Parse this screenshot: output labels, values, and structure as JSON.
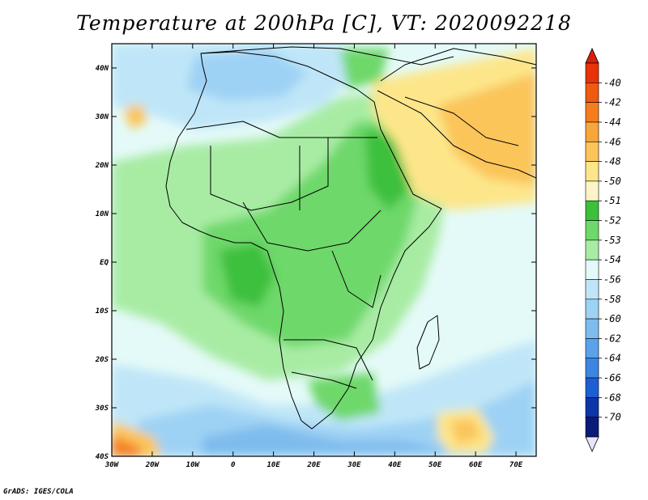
{
  "title": "Temperature at 200hPa [C], VT: 2020092218",
  "credit": "GrADS: IGES/COLA",
  "chart_data": {
    "type": "heatmap",
    "variable": "Temperature at 200hPa",
    "unit": "C",
    "valid_time": "2020092218",
    "xlim": [
      -30,
      75
    ],
    "ylim": [
      -40,
      45
    ],
    "x_ticks": [
      {
        "value": -30,
        "label": "30W"
      },
      {
        "value": -20,
        "label": "20W"
      },
      {
        "value": -10,
        "label": "10W"
      },
      {
        "value": 0,
        "label": "0"
      },
      {
        "value": 10,
        "label": "10E"
      },
      {
        "value": 20,
        "label": "20E"
      },
      {
        "value": 30,
        "label": "30E"
      },
      {
        "value": 40,
        "label": "40E"
      },
      {
        "value": 50,
        "label": "50E"
      },
      {
        "value": 60,
        "label": "60E"
      },
      {
        "value": 70,
        "label": "70E"
      }
    ],
    "y_ticks": [
      {
        "value": 40,
        "label": "40N"
      },
      {
        "value": 30,
        "label": "30N"
      },
      {
        "value": 20,
        "label": "20N"
      },
      {
        "value": 10,
        "label": "10N"
      },
      {
        "value": 0,
        "label": "EQ"
      },
      {
        "value": -10,
        "label": "10S"
      },
      {
        "value": -20,
        "label": "20S"
      },
      {
        "value": -30,
        "label": "30S"
      },
      {
        "value": -40,
        "label": "40S"
      }
    ],
    "colorbar": {
      "labels": [
        "-40",
        "-42",
        "-44",
        "-46",
        "-48",
        "-50",
        "-51",
        "-52",
        "-53",
        "-54",
        "-56",
        "-58",
        "-60",
        "-62",
        "-64",
        "-66",
        "-68",
        "-70"
      ],
      "colors": [
        "#e83208",
        "#f05a10",
        "#f57e1c",
        "#f8a53a",
        "#fbc55a",
        "#fde68a",
        "#fdf5c8",
        "#3cc03c",
        "#6ed86a",
        "#a8eca4",
        "#e4faf8",
        "#bfe6f8",
        "#9ed2f4",
        "#7ebcee",
        "#5aa2ea",
        "#3c86e2",
        "#1e5ed4",
        "#0c36a8",
        "#0a1a78"
      ],
      "top_color": "#d82008",
      "bottom_color": "#e8e4fc"
    }
  }
}
